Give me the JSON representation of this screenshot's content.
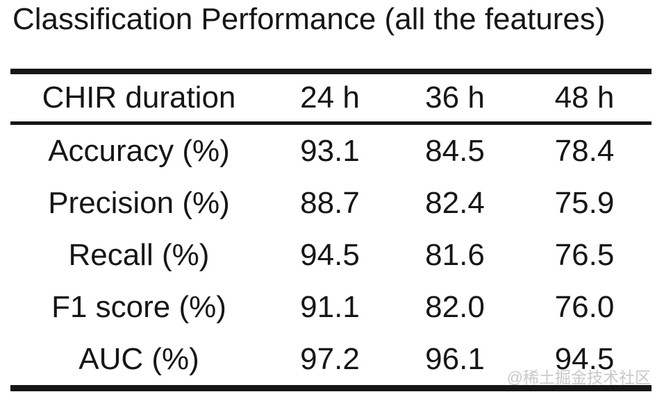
{
  "title": "Classification Performance (all the features)",
  "watermark": "@稀土掘金技术社区",
  "colors": {
    "text": "#161616",
    "rule": "#161616",
    "background": "#ffffff",
    "watermark": "#c6c6c6"
  },
  "chart_data": {
    "type": "table",
    "title": "Classification Performance (all the features)",
    "columns": [
      "CHIR duration",
      "24 h",
      "36 h",
      "48 h"
    ],
    "rows": [
      {
        "label": "Accuracy (%)",
        "values": [
          "93.1",
          "84.5",
          "78.4"
        ]
      },
      {
        "label": "Precision (%)",
        "values": [
          "88.7",
          "82.4",
          "75.9"
        ]
      },
      {
        "label": "Recall (%)",
        "values": [
          "94.5",
          "81.6",
          "76.5"
        ]
      },
      {
        "label": "F1 score (%)",
        "values": [
          "91.1",
          "82.0",
          "76.0"
        ]
      },
      {
        "label": "AUC (%)",
        "values": [
          "97.2",
          "96.1",
          "94.5"
        ]
      }
    ],
    "layout": {
      "rules": "thick-top-thin-mid-thick-bottom",
      "alignment": "center"
    }
  }
}
